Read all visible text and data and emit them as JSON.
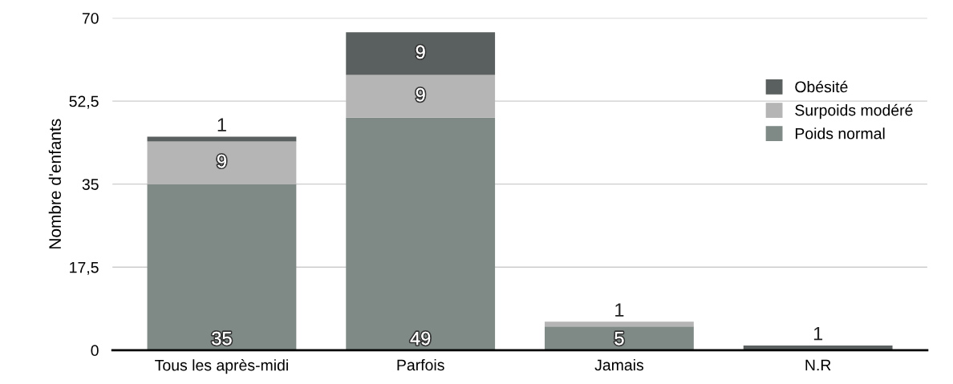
{
  "chart_data": {
    "type": "bar",
    "stacked": true,
    "ylabel": "Nombre d'enfants",
    "categories": [
      "Tous les après-midi",
      "Parfois",
      "Jamais",
      "N.R"
    ],
    "series": [
      {
        "name": "Poids normal",
        "color": "#7f8a87",
        "values": [
          35,
          49,
          5,
          null
        ],
        "value_labels": [
          "35",
          "49",
          "5",
          null
        ]
      },
      {
        "name": "Surpoids modéré",
        "color": "#b5b5b5",
        "values": [
          9,
          9,
          1,
          null
        ],
        "value_labels": [
          "9",
          "9",
          "1",
          null
        ]
      },
      {
        "name": "Obésité",
        "color": "#5a605f",
        "values": [
          1,
          9,
          null,
          1
        ],
        "value_labels": [
          "1",
          "9",
          null,
          "1"
        ]
      }
    ],
    "ylim": [
      0,
      70
    ],
    "yticks": [
      0,
      {
        "value": 17.5,
        "label": "17,5"
      },
      35,
      {
        "value": 52.5,
        "label": "52,5"
      },
      70
    ],
    "grid": "y",
    "legend": "right"
  }
}
